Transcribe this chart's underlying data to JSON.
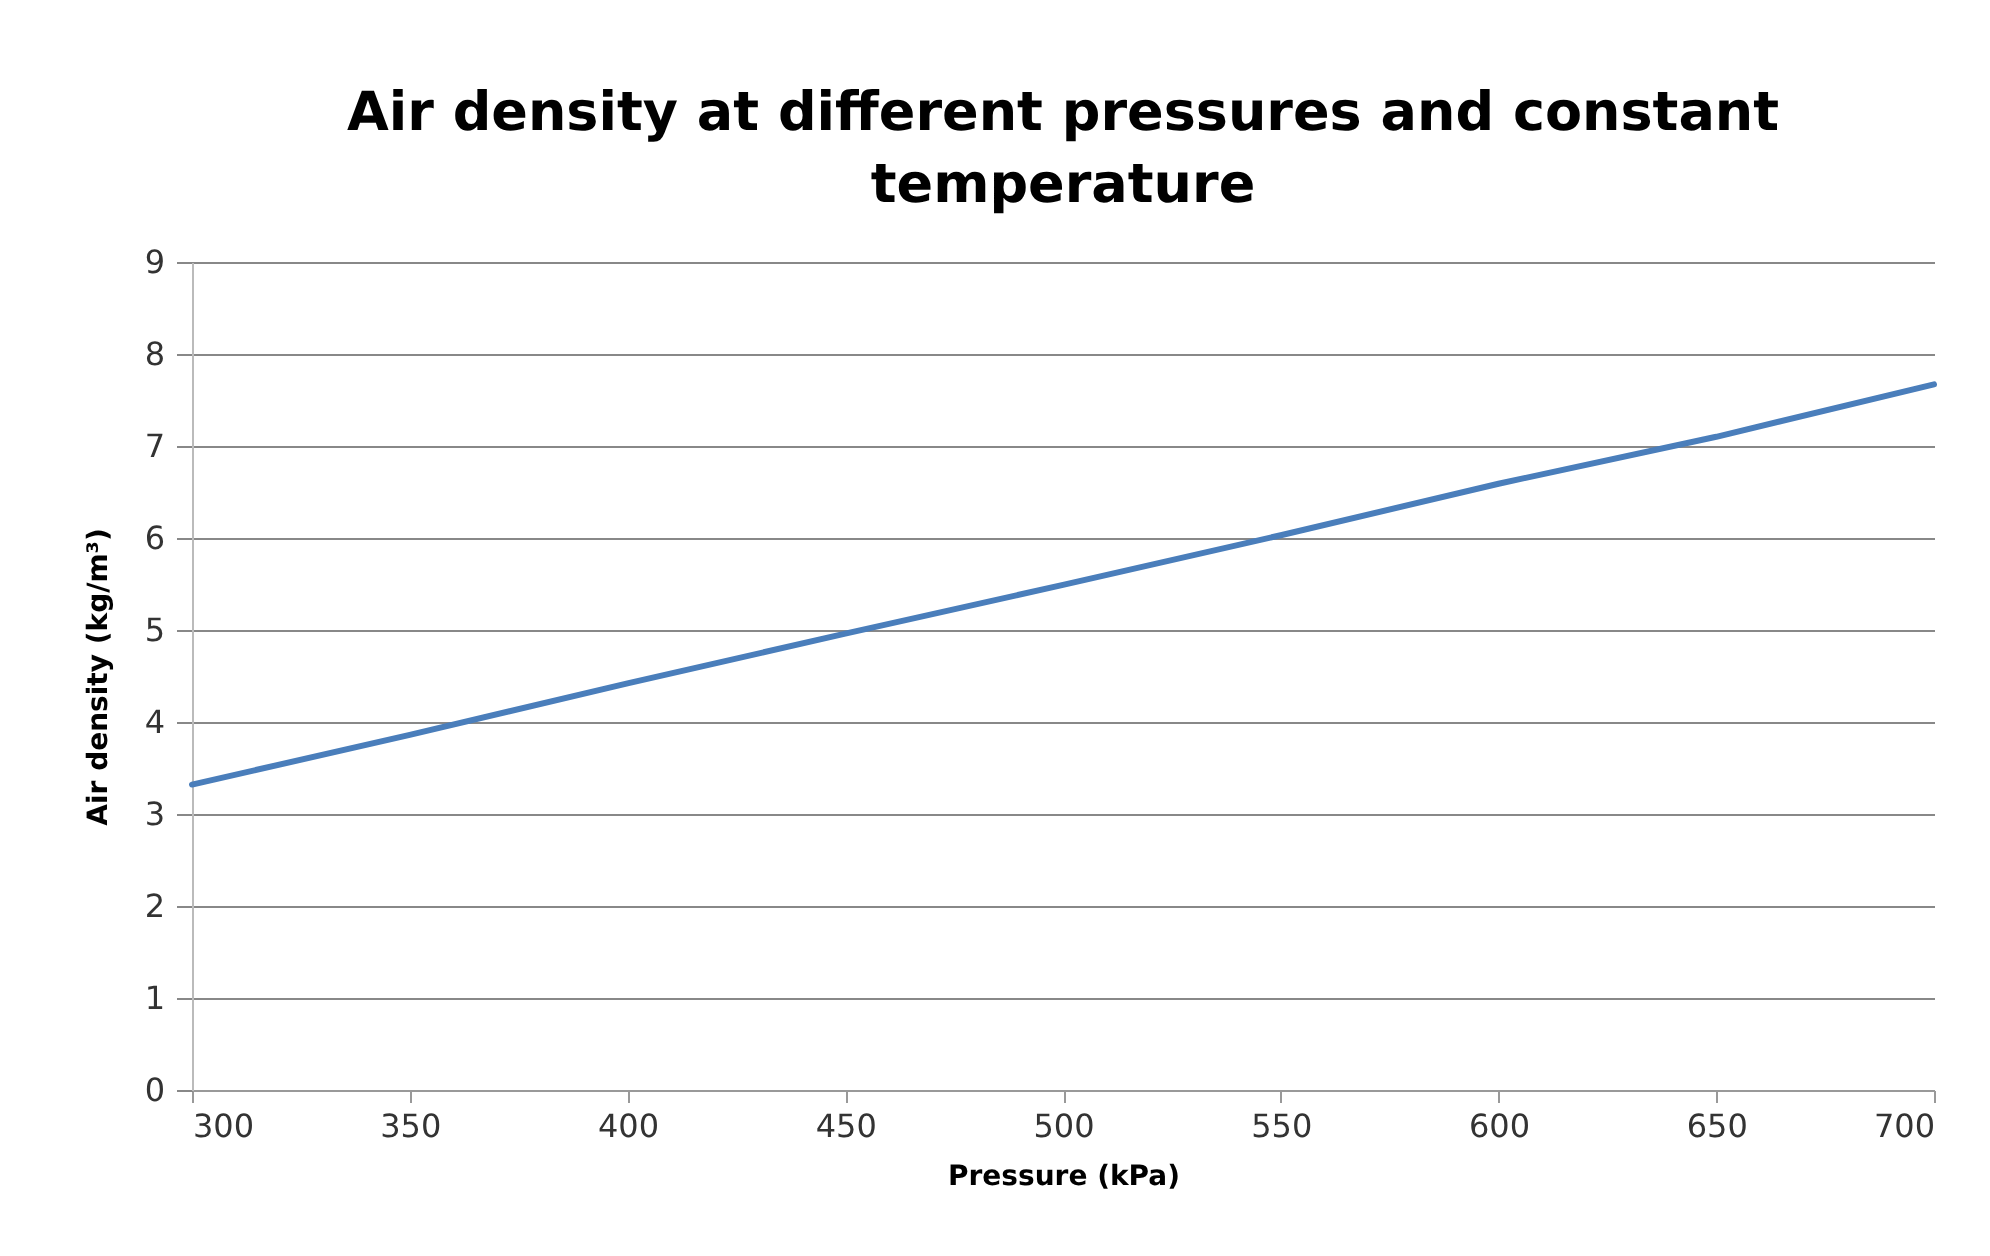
{
  "chart_data": {
    "type": "line",
    "title": [
      "Air density at different pressures and constant",
      "temperature"
    ],
    "xlabel": "Pressure (kPa)",
    "ylabel": "Air density (kg/m³)",
    "x": [
      300,
      350,
      400,
      450,
      500,
      550,
      600,
      650,
      700
    ],
    "series": [
      {
        "color": "#4a7ebb",
        "values": [
          3.32,
          3.86,
          4.42,
          4.96,
          5.49,
          6.03,
          6.59,
          7.1,
          7.67
        ]
      }
    ],
    "xlim": [
      300,
      700
    ],
    "xticks": [
      300,
      350,
      400,
      450,
      500,
      550,
      600,
      650,
      700
    ],
    "ylim": [
      0,
      9
    ],
    "yticks": [
      0,
      1,
      2,
      3,
      4,
      5,
      6,
      7,
      8,
      9
    ],
    "grid": "y",
    "marker": "none",
    "line_style": "solid"
  }
}
